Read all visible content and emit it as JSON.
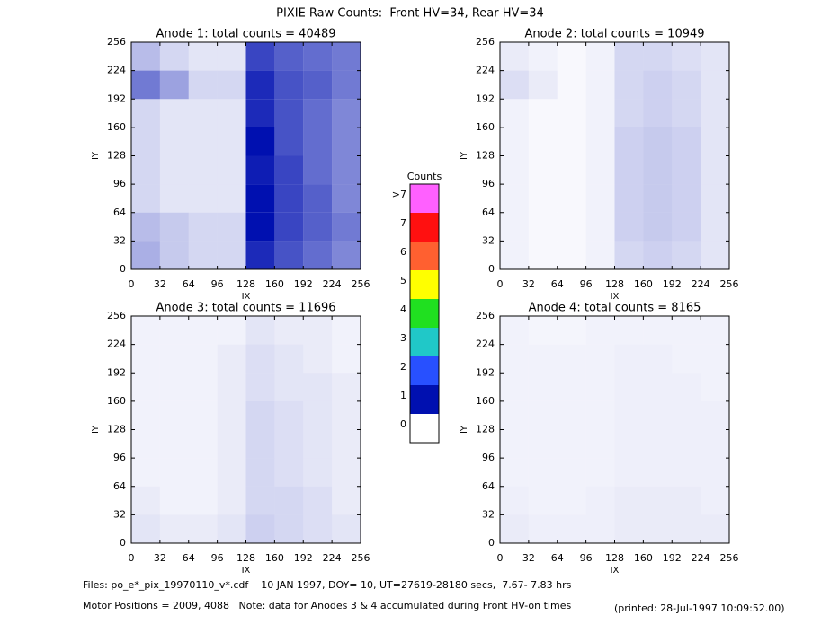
{
  "title": "PIXIE Raw Counts:  Front HV=34, Rear HV=34",
  "colorbar": {
    "title": "Counts",
    "labels": [
      "0",
      "1",
      "2",
      "3",
      "4",
      "5",
      "6",
      "7",
      ">7"
    ],
    "colors": [
      "#ffffff",
      "#0010b0",
      "#2850ff",
      "#20c8c8",
      "#20e020",
      "#ffff00",
      "#ff6030",
      "#ff1010",
      "#ff60ff"
    ]
  },
  "footer": {
    "line1": "Files: po_e*_pix_19970110_v*.cdf    10 JAN 1997, DOY= 10, UT=27619-28180 secs,  7.67- 7.83 hrs",
    "line2": "Motor Positions = 2009, 4088   Note: data for Anodes 3 & 4 accumulated during Front HV-on times",
    "printed": "(printed: 28-Jul-1997 10:09:52.00)"
  },
  "chart_data": [
    {
      "type": "heatmap",
      "title": "Anode 1: total counts = 40489",
      "xlabel": "IX",
      "ylabel": "IY",
      "color": "#0010b0",
      "xlim": [
        0,
        256
      ],
      "ylim": [
        0,
        256
      ],
      "xticks": [
        0,
        32,
        64,
        96,
        128,
        160,
        192,
        224,
        256
      ],
      "yticks": [
        0,
        32,
        64,
        96,
        128,
        160,
        192,
        224,
        256
      ],
      "values": [
        [
          0.6,
          0.4,
          0.3,
          0.3,
          1.6,
          1.3,
          1.1,
          0.9
        ],
        [
          0.5,
          0.4,
          0.3,
          0.3,
          1.8,
          1.4,
          1.2,
          1.0
        ],
        [
          0.3,
          0.2,
          0.2,
          0.2,
          1.8,
          1.4,
          1.2,
          0.9
        ],
        [
          0.3,
          0.2,
          0.2,
          0.2,
          1.7,
          1.4,
          1.1,
          0.9
        ],
        [
          0.3,
          0.2,
          0.2,
          0.2,
          1.8,
          1.3,
          1.1,
          0.9
        ],
        [
          0.3,
          0.2,
          0.2,
          0.2,
          1.6,
          1.3,
          1.1,
          0.9
        ],
        [
          1.0,
          0.7,
          0.3,
          0.3,
          1.6,
          1.3,
          1.2,
          1.0
        ],
        [
          0.5,
          0.3,
          0.2,
          0.2,
          1.4,
          1.2,
          1.1,
          1.0
        ]
      ]
    },
    {
      "type": "heatmap",
      "title": "Anode 2: total counts = 10949",
      "xlabel": "IX",
      "ylabel": "IY",
      "color": "#0010b0",
      "xlim": [
        0,
        256
      ],
      "ylim": [
        0,
        256
      ],
      "xticks": [
        0,
        32,
        64,
        96,
        128,
        160,
        192,
        224,
        256
      ],
      "yticks": [
        0,
        32,
        64,
        96,
        128,
        160,
        192,
        224,
        256
      ],
      "values": [
        [
          0.1,
          0.05,
          0.05,
          0.1,
          0.3,
          0.35,
          0.3,
          0.2
        ],
        [
          0.1,
          0.05,
          0.05,
          0.1,
          0.35,
          0.4,
          0.35,
          0.2
        ],
        [
          0.1,
          0.05,
          0.05,
          0.1,
          0.35,
          0.4,
          0.35,
          0.2
        ],
        [
          0.1,
          0.05,
          0.05,
          0.1,
          0.35,
          0.4,
          0.35,
          0.2
        ],
        [
          0.1,
          0.05,
          0.05,
          0.1,
          0.35,
          0.4,
          0.35,
          0.2
        ],
        [
          0.1,
          0.05,
          0.05,
          0.1,
          0.3,
          0.35,
          0.3,
          0.2
        ],
        [
          0.25,
          0.15,
          0.05,
          0.1,
          0.3,
          0.35,
          0.3,
          0.2
        ],
        [
          0.15,
          0.1,
          0.05,
          0.1,
          0.3,
          0.3,
          0.25,
          0.2
        ]
      ]
    },
    {
      "type": "heatmap",
      "title": "Anode 3: total counts = 11696",
      "xlabel": "IX",
      "ylabel": "IY",
      "color": "#0010b0",
      "xlim": [
        0,
        256
      ],
      "ylim": [
        0,
        256
      ],
      "xticks": [
        0,
        32,
        64,
        96,
        128,
        160,
        192,
        224,
        256
      ],
      "yticks": [
        0,
        32,
        64,
        96,
        128,
        160,
        192,
        224,
        256
      ],
      "values": [
        [
          0.2,
          0.15,
          0.15,
          0.2,
          0.35,
          0.3,
          0.25,
          0.2
        ],
        [
          0.15,
          0.1,
          0.1,
          0.15,
          0.3,
          0.3,
          0.25,
          0.15
        ],
        [
          0.1,
          0.1,
          0.1,
          0.15,
          0.3,
          0.25,
          0.2,
          0.15
        ],
        [
          0.1,
          0.1,
          0.1,
          0.15,
          0.3,
          0.25,
          0.2,
          0.15
        ],
        [
          0.1,
          0.1,
          0.1,
          0.15,
          0.3,
          0.25,
          0.2,
          0.15
        ],
        [
          0.1,
          0.1,
          0.1,
          0.15,
          0.25,
          0.2,
          0.2,
          0.15
        ],
        [
          0.1,
          0.1,
          0.1,
          0.15,
          0.25,
          0.2,
          0.15,
          0.1
        ],
        [
          0.1,
          0.1,
          0.1,
          0.1,
          0.2,
          0.15,
          0.15,
          0.1
        ]
      ]
    },
    {
      "type": "heatmap",
      "title": "Anode 4: total counts = 8165",
      "xlabel": "IX",
      "ylabel": "IY",
      "color": "#0010b0",
      "xlim": [
        0,
        256
      ],
      "ylim": [
        0,
        256
      ],
      "xticks": [
        0,
        32,
        64,
        96,
        128,
        160,
        192,
        224,
        256
      ],
      "yticks": [
        0,
        32,
        64,
        96,
        128,
        160,
        192,
        224,
        256
      ],
      "values": [
        [
          0.15,
          0.12,
          0.12,
          0.12,
          0.15,
          0.15,
          0.15,
          0.15
        ],
        [
          0.12,
          0.1,
          0.1,
          0.12,
          0.15,
          0.15,
          0.15,
          0.12
        ],
        [
          0.1,
          0.1,
          0.1,
          0.1,
          0.12,
          0.12,
          0.12,
          0.12
        ],
        [
          0.1,
          0.1,
          0.1,
          0.1,
          0.12,
          0.12,
          0.12,
          0.12
        ],
        [
          0.1,
          0.1,
          0.1,
          0.1,
          0.12,
          0.12,
          0.12,
          0.12
        ],
        [
          0.1,
          0.1,
          0.1,
          0.1,
          0.12,
          0.12,
          0.12,
          0.1
        ],
        [
          0.1,
          0.1,
          0.1,
          0.1,
          0.12,
          0.12,
          0.1,
          0.1
        ],
        [
          0.1,
          0.08,
          0.08,
          0.1,
          0.1,
          0.1,
          0.1,
          0.1
        ]
      ]
    }
  ]
}
